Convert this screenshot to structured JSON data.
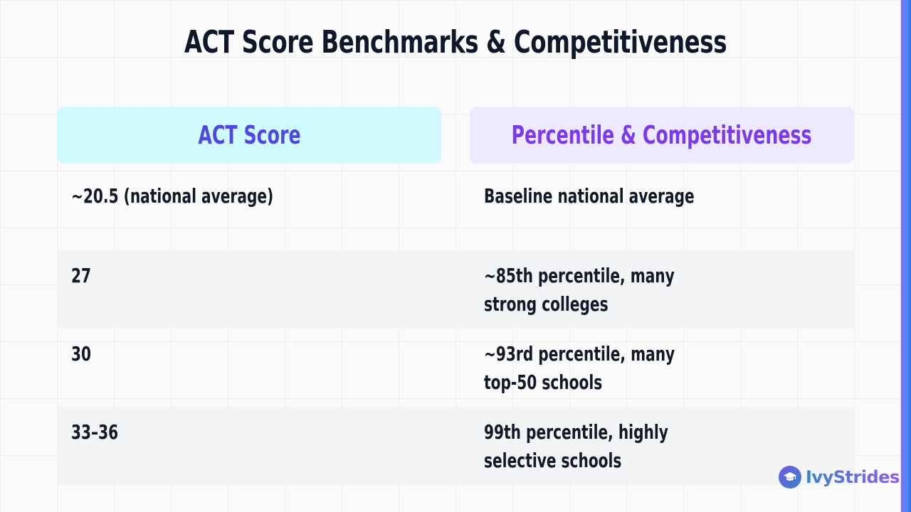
{
  "title": "ACT Score Benchmarks & Competitiveness",
  "table": {
    "headers": [
      "ACT Score",
      "Percentile & Competitiveness"
    ],
    "rows": [
      [
        "~20.5 (national average)",
        "Baseline national average"
      ],
      [
        "27",
        "~85th percentile, many strong colleges"
      ],
      [
        "30",
        "~93rd percentile, many top-50 schools"
      ],
      [
        "33–36",
        "99th percentile, highly selective schools"
      ]
    ]
  },
  "logo": {
    "text": "IvyStrides",
    "icon": "graduation-cap-icon"
  },
  "colors": {
    "left_header_bg": "#cffafe",
    "left_header_text": "#4f46e5",
    "right_header_bg": "#ede9fe",
    "right_header_text": "#7c3aed",
    "accent_bar": "#4f8af3"
  }
}
